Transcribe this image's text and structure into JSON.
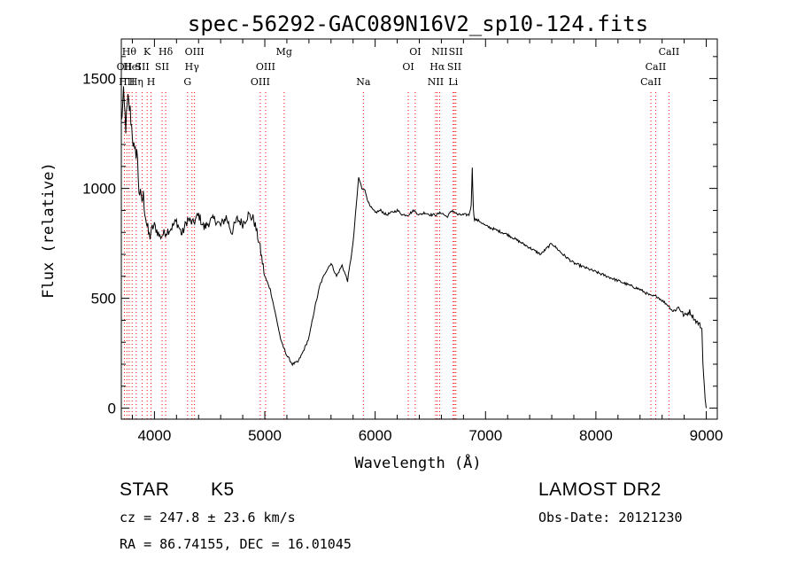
{
  "chart_data": {
    "type": "line",
    "title": "spec-56292-GAC089N16V2_sp10-124.fits",
    "xlabel": "Wavelength (Å)",
    "ylabel": "Flux (relative)",
    "xlim": [
      3700,
      9100
    ],
    "ylim": [
      -50,
      1680
    ],
    "x_ticks": [
      4000,
      5000,
      6000,
      7000,
      8000,
      9000
    ],
    "y_ticks": [
      0,
      500,
      1000,
      1500
    ],
    "grid": false,
    "series": [
      {
        "x": [
          3700,
          3720,
          3740,
          3760,
          3780,
          3800,
          3820,
          3840,
          3860,
          3880,
          3900,
          3920,
          3940,
          3960,
          3980,
          4000,
          4050,
          4100,
          4150,
          4200,
          4250,
          4300,
          4350,
          4400,
          4450,
          4500,
          4550,
          4600,
          4650,
          4700,
          4750,
          4800,
          4850,
          4900,
          4950,
          5000,
          5050,
          5100,
          5150,
          5200,
          5250,
          5300,
          5350,
          5400,
          5450,
          5500,
          5550,
          5600,
          5650,
          5700,
          5750,
          5800,
          5850,
          5880,
          5900,
          5950,
          6000,
          6050,
          6100,
          6150,
          6200,
          6250,
          6300,
          6350,
          6400,
          6450,
          6500,
          6550,
          6600,
          6650,
          6700,
          6750,
          6800,
          6850,
          6870,
          6880,
          6890,
          6900,
          6950,
          7000,
          7100,
          7200,
          7300,
          7400,
          7500,
          7600,
          7700,
          7800,
          7900,
          8000,
          8100,
          8200,
          8300,
          8400,
          8500,
          8550,
          8600,
          8650,
          8700,
          8750,
          8800,
          8850,
          8900,
          8940,
          8960,
          8970,
          8990,
          9000
        ],
        "y": [
          1300,
          1420,
          1280,
          1400,
          1350,
          1250,
          1150,
          1180,
          1000,
          940,
          960,
          880,
          800,
          780,
          820,
          830,
          780,
          800,
          820,
          850,
          790,
          860,
          840,
          880,
          820,
          850,
          860,
          830,
          870,
          800,
          860,
          840,
          880,
          860,
          750,
          600,
          540,
          420,
          300,
          240,
          200,
          210,
          260,
          320,
          450,
          560,
          620,
          660,
          600,
          650,
          580,
          750,
          1050,
          1000,
          1000,
          920,
          890,
          900,
          880,
          890,
          900,
          880,
          880,
          900,
          880,
          890,
          880,
          880,
          890,
          870,
          900,
          880,
          880,
          880,
          920,
          1100,
          900,
          860,
          850,
          830,
          810,
          790,
          760,
          730,
          700,
          750,
          700,
          660,
          640,
          620,
          600,
          580,
          560,
          540,
          510,
          510,
          490,
          470,
          440,
          460,
          420,
          440,
          400,
          380,
          360,
          200,
          40,
          0
        ],
        "style": "step"
      }
    ],
    "line_markers": [
      {
        "wl": 3728,
        "name": "OII",
        "row": 1
      },
      {
        "wl": 3750,
        "name": "HII",
        "row": 2
      },
      {
        "wl": 3771,
        "name": "Hθ",
        "row": 0
      },
      {
        "wl": 3798,
        "name": "HeI",
        "row": 1
      },
      {
        "wl": 3835,
        "name": "Hη",
        "row": 2
      },
      {
        "wl": 3889,
        "name": "SII",
        "row": 1
      },
      {
        "wl": 3934,
        "name": "K",
        "row": 0
      },
      {
        "wl": 3969,
        "name": "H",
        "row": 2
      },
      {
        "wl": 4069,
        "name": "SII",
        "row": 1
      },
      {
        "wl": 4102,
        "name": "Hδ",
        "row": 0
      },
      {
        "wl": 4300,
        "name": "G",
        "row": 2
      },
      {
        "wl": 4340,
        "name": "Hγ",
        "row": 1
      },
      {
        "wl": 4363,
        "name": "OIII",
        "row": 0
      },
      {
        "wl": 4959,
        "name": "OIII",
        "row": 2
      },
      {
        "wl": 5007,
        "name": "OIII",
        "row": 1
      },
      {
        "wl": 5175,
        "name": "Mg",
        "row": 0
      },
      {
        "wl": 5893,
        "name": "Na",
        "row": 2
      },
      {
        "wl": 6300,
        "name": "OI",
        "row": 1
      },
      {
        "wl": 6363,
        "name": "OI",
        "row": 0
      },
      {
        "wl": 6548,
        "name": "NII",
        "row": 2
      },
      {
        "wl": 6563,
        "name": "Hα",
        "row": 1
      },
      {
        "wl": 6584,
        "name": "NII",
        "row": 0
      },
      {
        "wl": 6707,
        "name": "Li",
        "row": 2
      },
      {
        "wl": 6717,
        "name": "SII",
        "row": 1
      },
      {
        "wl": 6731,
        "name": "SII",
        "row": 0
      },
      {
        "wl": 8498,
        "name": "CaII",
        "row": 2
      },
      {
        "wl": 8542,
        "name": "CaII",
        "row": 1
      },
      {
        "wl": 8662,
        "name": "CaII",
        "row": 0
      }
    ],
    "marker_color": "#ff0000"
  },
  "footer": {
    "class_label": "STAR",
    "subclass": "K5",
    "survey": "LAMOST DR2",
    "redshift": "cz = 247.8 ± 23.6 km/s",
    "obs_date": "Obs-Date: 20121230",
    "coords": "RA =  86.74155, DEC =  16.01045"
  }
}
